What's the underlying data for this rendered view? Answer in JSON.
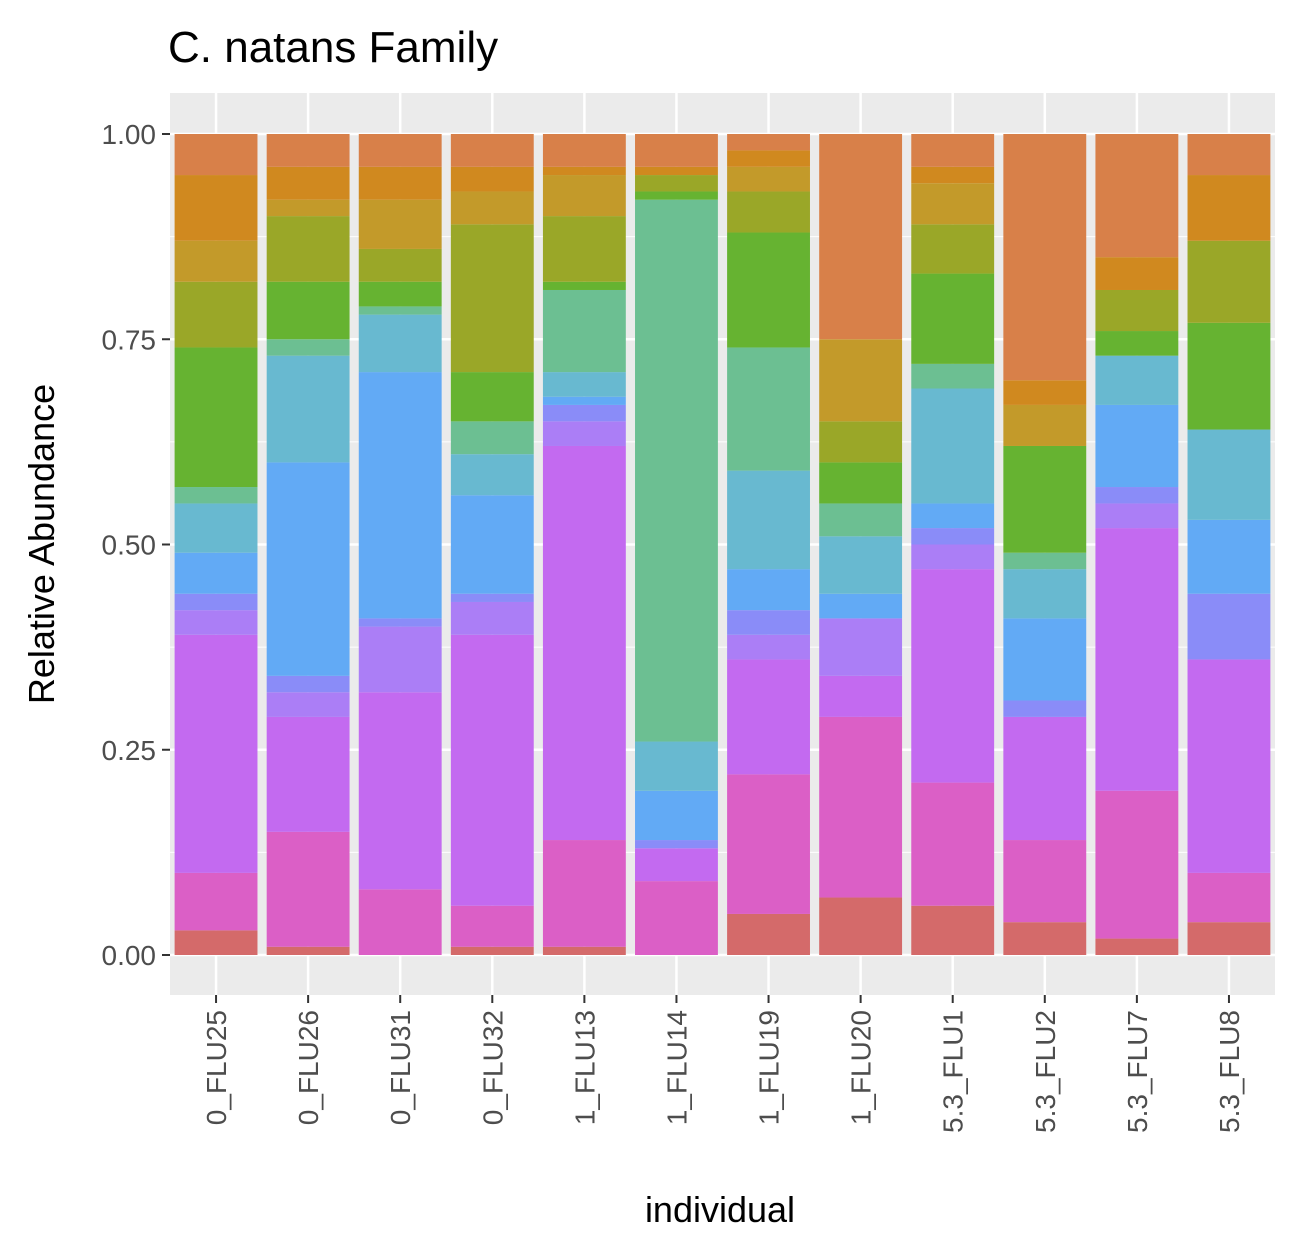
{
  "chart_data": {
    "type": "bar",
    "stacked": true,
    "normalized": true,
    "title": "C. natans Family",
    "xlabel": "individual",
    "ylabel": "Relative Abundance",
    "ylim": [
      0,
      1
    ],
    "yticks": [
      "0.00",
      "0.25",
      "0.50",
      "0.75",
      "1.00"
    ],
    "ytick_values": [
      0,
      0.25,
      0.5,
      0.75,
      1.0
    ],
    "grid": true,
    "legend": "none",
    "categories": [
      "0_FLU25",
      "0_FLU26",
      "0_FLU31",
      "0_FLU32",
      "1_FLU13",
      "1_FLU14",
      "1_FLU19",
      "1_FLU20",
      "5.3_FLU1",
      "5.3_FLU2",
      "5.3_FLU7",
      "5.3_FLU8"
    ],
    "palette": [
      "#d46a6a",
      "#db5fc6",
      "#c36af0",
      "#ab7ef6",
      "#8a8cf8",
      "#62aaf5",
      "#68b9d0",
      "#6cbf92",
      "#66b331",
      "#9aa728",
      "#c39a2a",
      "#d0891f",
      "#d88049"
    ],
    "stacks": [
      [
        {
          "color": "#d46a6a",
          "value": 0.03
        },
        {
          "color": "#db5fc6",
          "value": 0.07
        },
        {
          "color": "#c36af0",
          "value": 0.29
        },
        {
          "color": "#ab7ef6",
          "value": 0.03
        },
        {
          "color": "#8a8cf8",
          "value": 0.02
        },
        {
          "color": "#62aaf5",
          "value": 0.05
        },
        {
          "color": "#68b9d0",
          "value": 0.06
        },
        {
          "color": "#6cbf92",
          "value": 0.02
        },
        {
          "color": "#66b331",
          "value": 0.17
        },
        {
          "color": "#9aa728",
          "value": 0.08
        },
        {
          "color": "#c39a2a",
          "value": 0.05
        },
        {
          "color": "#d0891f",
          "value": 0.08
        },
        {
          "color": "#d88049",
          "value": 0.05
        }
      ],
      [
        {
          "color": "#d46a6a",
          "value": 0.01
        },
        {
          "color": "#db5fc6",
          "value": 0.14
        },
        {
          "color": "#c36af0",
          "value": 0.14
        },
        {
          "color": "#ab7ef6",
          "value": 0.03
        },
        {
          "color": "#8a8cf8",
          "value": 0.02
        },
        {
          "color": "#62aaf5",
          "value": 0.26
        },
        {
          "color": "#68b9d0",
          "value": 0.13
        },
        {
          "color": "#6cbf92",
          "value": 0.02
        },
        {
          "color": "#66b331",
          "value": 0.07
        },
        {
          "color": "#9aa728",
          "value": 0.08
        },
        {
          "color": "#c39a2a",
          "value": 0.02
        },
        {
          "color": "#d0891f",
          "value": 0.04
        },
        {
          "color": "#d88049",
          "value": 0.04
        }
      ],
      [
        {
          "color": "#db5fc6",
          "value": 0.08
        },
        {
          "color": "#c36af0",
          "value": 0.24
        },
        {
          "color": "#ab7ef6",
          "value": 0.08
        },
        {
          "color": "#8a8cf8",
          "value": 0.01
        },
        {
          "color": "#62aaf5",
          "value": 0.3
        },
        {
          "color": "#68b9d0",
          "value": 0.07
        },
        {
          "color": "#6cbf92",
          "value": 0.01
        },
        {
          "color": "#66b331",
          "value": 0.03
        },
        {
          "color": "#9aa728",
          "value": 0.04
        },
        {
          "color": "#c39a2a",
          "value": 0.06
        },
        {
          "color": "#d0891f",
          "value": 0.04
        },
        {
          "color": "#d88049",
          "value": 0.04
        }
      ],
      [
        {
          "color": "#d46a6a",
          "value": 0.01
        },
        {
          "color": "#db5fc6",
          "value": 0.05
        },
        {
          "color": "#c36af0",
          "value": 0.33
        },
        {
          "color": "#ab7ef6",
          "value": 0.04
        },
        {
          "color": "#8a8cf8",
          "value": 0.01
        },
        {
          "color": "#62aaf5",
          "value": 0.12
        },
        {
          "color": "#68b9d0",
          "value": 0.05
        },
        {
          "color": "#6cbf92",
          "value": 0.04
        },
        {
          "color": "#66b331",
          "value": 0.06
        },
        {
          "color": "#9aa728",
          "value": 0.18
        },
        {
          "color": "#c39a2a",
          "value": 0.04
        },
        {
          "color": "#d0891f",
          "value": 0.03
        },
        {
          "color": "#d88049",
          "value": 0.04
        }
      ],
      [
        {
          "color": "#d46a6a",
          "value": 0.01
        },
        {
          "color": "#db5fc6",
          "value": 0.13
        },
        {
          "color": "#c36af0",
          "value": 0.48
        },
        {
          "color": "#ab7ef6",
          "value": 0.03
        },
        {
          "color": "#8a8cf8",
          "value": 0.02
        },
        {
          "color": "#62aaf5",
          "value": 0.01
        },
        {
          "color": "#68b9d0",
          "value": 0.03
        },
        {
          "color": "#6cbf92",
          "value": 0.1
        },
        {
          "color": "#66b331",
          "value": 0.01
        },
        {
          "color": "#9aa728",
          "value": 0.08
        },
        {
          "color": "#c39a2a",
          "value": 0.05
        },
        {
          "color": "#d0891f",
          "value": 0.01
        },
        {
          "color": "#d88049",
          "value": 0.04
        }
      ],
      [
        {
          "color": "#db5fc6",
          "value": 0.09
        },
        {
          "color": "#c36af0",
          "value": 0.04
        },
        {
          "color": "#8a8cf8",
          "value": 0.01
        },
        {
          "color": "#62aaf5",
          "value": 0.06
        },
        {
          "color": "#68b9d0",
          "value": 0.06
        },
        {
          "color": "#6cbf92",
          "value": 0.66
        },
        {
          "color": "#66b331",
          "value": 0.01
        },
        {
          "color": "#9aa728",
          "value": 0.02
        },
        {
          "color": "#d0891f",
          "value": 0.01
        },
        {
          "color": "#d88049",
          "value": 0.04
        }
      ],
      [
        {
          "color": "#d46a6a",
          "value": 0.05
        },
        {
          "color": "#db5fc6",
          "value": 0.17
        },
        {
          "color": "#c36af0",
          "value": 0.14
        },
        {
          "color": "#ab7ef6",
          "value": 0.03
        },
        {
          "color": "#8a8cf8",
          "value": 0.03
        },
        {
          "color": "#62aaf5",
          "value": 0.05
        },
        {
          "color": "#68b9d0",
          "value": 0.12
        },
        {
          "color": "#6cbf92",
          "value": 0.15
        },
        {
          "color": "#66b331",
          "value": 0.14
        },
        {
          "color": "#9aa728",
          "value": 0.05
        },
        {
          "color": "#c39a2a",
          "value": 0.03
        },
        {
          "color": "#d0891f",
          "value": 0.02
        },
        {
          "color": "#d88049",
          "value": 0.02
        }
      ],
      [
        {
          "color": "#d46a6a",
          "value": 0.07
        },
        {
          "color": "#db5fc6",
          "value": 0.22
        },
        {
          "color": "#c36af0",
          "value": 0.05
        },
        {
          "color": "#ab7ef6",
          "value": 0.07
        },
        {
          "color": "#62aaf5",
          "value": 0.03
        },
        {
          "color": "#68b9d0",
          "value": 0.07
        },
        {
          "color": "#6cbf92",
          "value": 0.04
        },
        {
          "color": "#66b331",
          "value": 0.05
        },
        {
          "color": "#9aa728",
          "value": 0.05
        },
        {
          "color": "#c39a2a",
          "value": 0.1
        },
        {
          "color": "#d88049",
          "value": 0.25
        }
      ],
      [
        {
          "color": "#d46a6a",
          "value": 0.06
        },
        {
          "color": "#db5fc6",
          "value": 0.15
        },
        {
          "color": "#c36af0",
          "value": 0.26
        },
        {
          "color": "#ab7ef6",
          "value": 0.03
        },
        {
          "color": "#8a8cf8",
          "value": 0.02
        },
        {
          "color": "#62aaf5",
          "value": 0.03
        },
        {
          "color": "#68b9d0",
          "value": 0.14
        },
        {
          "color": "#6cbf92",
          "value": 0.03
        },
        {
          "color": "#66b331",
          "value": 0.11
        },
        {
          "color": "#9aa728",
          "value": 0.06
        },
        {
          "color": "#c39a2a",
          "value": 0.05
        },
        {
          "color": "#d0891f",
          "value": 0.02
        },
        {
          "color": "#d88049",
          "value": 0.04
        }
      ],
      [
        {
          "color": "#d46a6a",
          "value": 0.04
        },
        {
          "color": "#db5fc6",
          "value": 0.1
        },
        {
          "color": "#c36af0",
          "value": 0.15
        },
        {
          "color": "#8a8cf8",
          "value": 0.02
        },
        {
          "color": "#62aaf5",
          "value": 0.1
        },
        {
          "color": "#68b9d0",
          "value": 0.06
        },
        {
          "color": "#6cbf92",
          "value": 0.02
        },
        {
          "color": "#66b331",
          "value": 0.13
        },
        {
          "color": "#c39a2a",
          "value": 0.05
        },
        {
          "color": "#d0891f",
          "value": 0.03
        },
        {
          "color": "#d88049",
          "value": 0.3
        }
      ],
      [
        {
          "color": "#d46a6a",
          "value": 0.02
        },
        {
          "color": "#db5fc6",
          "value": 0.18
        },
        {
          "color": "#c36af0",
          "value": 0.32
        },
        {
          "color": "#ab7ef6",
          "value": 0.03
        },
        {
          "color": "#8a8cf8",
          "value": 0.02
        },
        {
          "color": "#62aaf5",
          "value": 0.1
        },
        {
          "color": "#68b9d0",
          "value": 0.06
        },
        {
          "color": "#66b331",
          "value": 0.03
        },
        {
          "color": "#9aa728",
          "value": 0.05
        },
        {
          "color": "#d0891f",
          "value": 0.04
        },
        {
          "color": "#d88049",
          "value": 0.15
        }
      ],
      [
        {
          "color": "#d46a6a",
          "value": 0.04
        },
        {
          "color": "#db5fc6",
          "value": 0.06
        },
        {
          "color": "#c36af0",
          "value": 0.26
        },
        {
          "color": "#8a8cf8",
          "value": 0.08
        },
        {
          "color": "#62aaf5",
          "value": 0.09
        },
        {
          "color": "#68b9d0",
          "value": 0.11
        },
        {
          "color": "#66b331",
          "value": 0.13
        },
        {
          "color": "#9aa728",
          "value": 0.1
        },
        {
          "color": "#d0891f",
          "value": 0.08
        },
        {
          "color": "#d88049",
          "value": 0.05
        }
      ]
    ]
  }
}
